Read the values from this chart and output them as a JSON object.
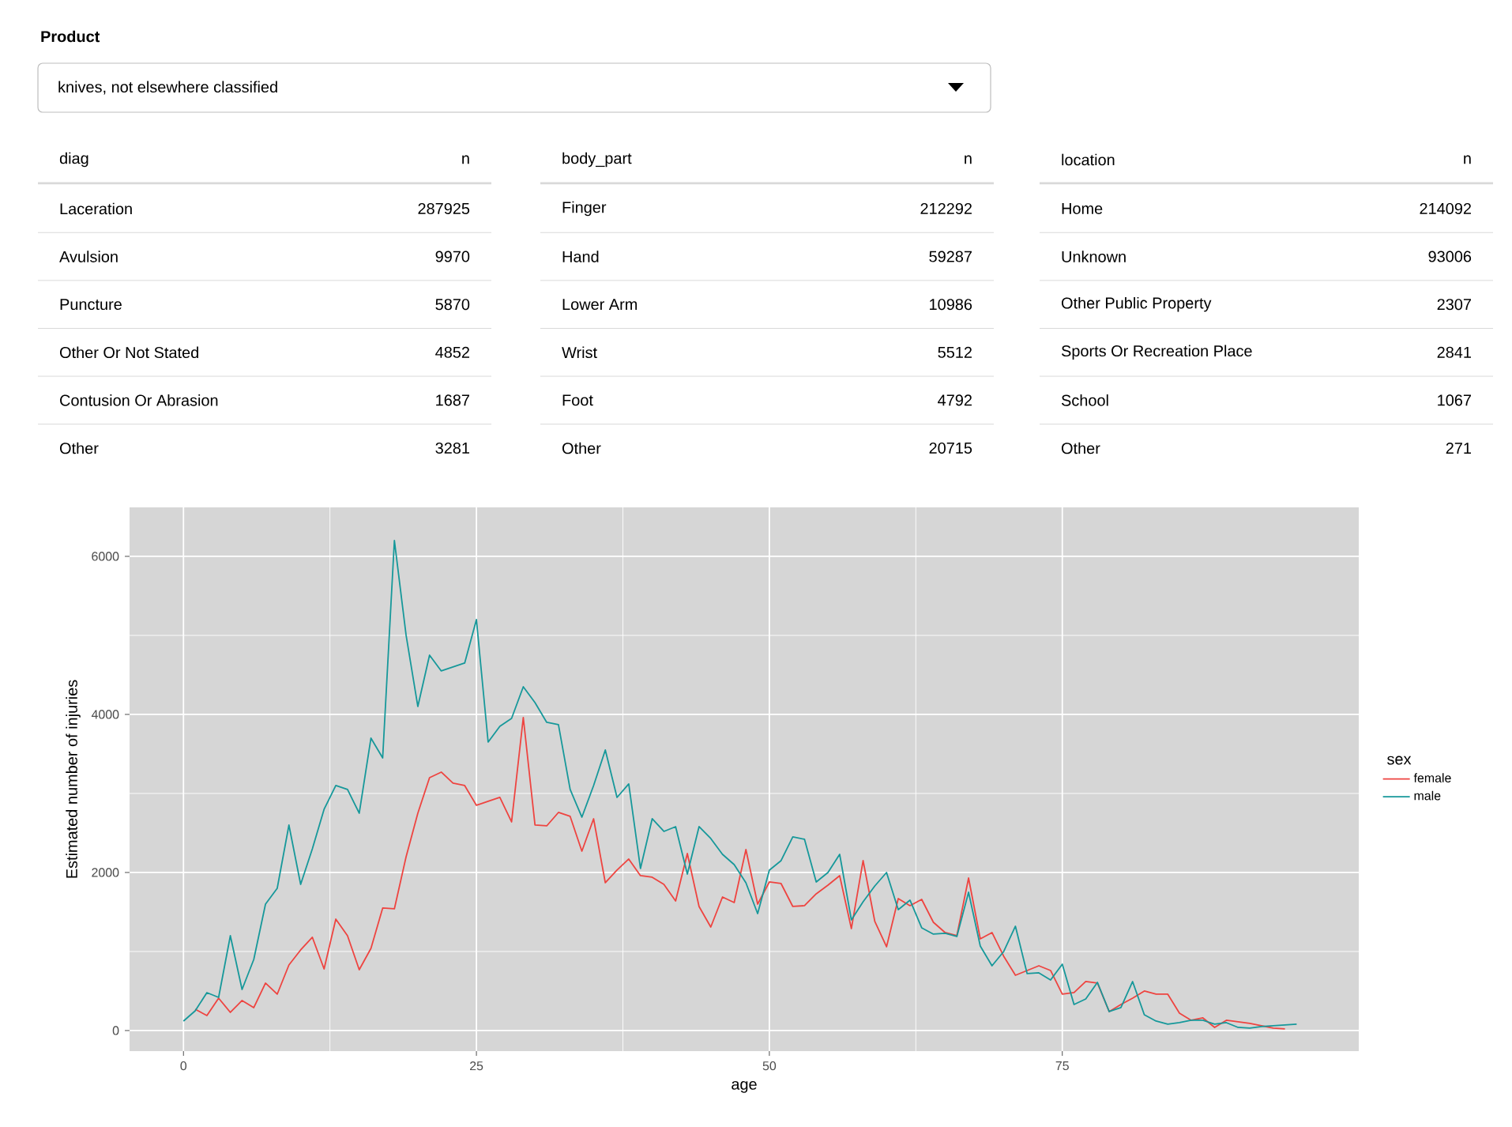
{
  "chart_data": [
    {
      "type": "other",
      "title": "Product",
      "annotations": [
        "knives, not elsewhere classified"
      ]
    },
    {
      "type": "other",
      "xlabel": "diag",
      "ylabel": "n",
      "data_labels": true,
      "categories": [
        "Laceration",
        "Avulsion",
        "Puncture",
        "Other Or Not Stated",
        "Contusion Or Abrasion",
        "Other"
      ],
      "values": [
        287925,
        9970,
        5870,
        4852,
        1687,
        3281
      ]
    },
    {
      "type": "other",
      "xlabel": "body_part",
      "ylabel": "n",
      "data_labels": true,
      "categories": [
        "Finger",
        "Hand",
        "Lower Arm",
        "Wrist",
        "Foot",
        "Other"
      ],
      "values": [
        212292,
        59287,
        10986,
        5512,
        4792,
        20715
      ]
    },
    {
      "type": "other",
      "xlabel": "location",
      "ylabel": "n",
      "data_labels": true,
      "categories": [
        "Home",
        "Unknown",
        "Other Public Property",
        "Sports Or Recreation Place",
        "School",
        "Other"
      ],
      "values": [
        214092,
        93006,
        2307,
        2841,
        1067,
        271
      ]
    },
    {
      "type": "line",
      "xlabel": "age",
      "ylabel": "Estimated number of injuries",
      "legend_title": "sex",
      "legend": "right",
      "grid": true,
      "xlim": [
        -4.6,
        100.3
      ],
      "ylim": [
        -260,
        6620
      ],
      "xticks": [
        0,
        25,
        50,
        75
      ],
      "yticks": [
        0,
        2000,
        4000,
        6000
      ],
      "x": [
        0,
        1,
        2,
        3,
        4,
        5,
        6,
        7,
        8,
        9,
        10,
        11,
        12,
        13,
        14,
        15,
        16,
        17,
        18,
        19,
        20,
        21,
        22,
        23,
        24,
        25,
        26,
        27,
        28,
        29,
        30,
        31,
        32,
        33,
        34,
        35,
        36,
        37,
        38,
        39,
        40,
        41,
        42,
        43,
        44,
        45,
        46,
        47,
        48,
        49,
        50,
        51,
        52,
        53,
        54,
        55,
        56,
        57,
        58,
        59,
        60,
        61,
        62,
        63,
        64,
        65,
        66,
        67,
        68,
        69,
        70,
        71,
        72,
        73,
        74,
        75,
        76,
        77,
        78,
        79,
        80,
        81,
        82,
        83,
        84,
        85,
        86,
        87,
        88,
        89,
        90,
        91,
        92,
        93,
        94,
        95
      ],
      "series": [
        {
          "name": "female",
          "color": "#ee4440",
          "values": [
            null,
            270,
            190,
            410,
            230,
            380,
            290,
            600,
            460,
            830,
            1020,
            1180,
            780,
            1410,
            1200,
            770,
            1040,
            1550,
            1540,
            2200,
            2750,
            3200,
            3270,
            3130,
            3100,
            2850,
            2900,
            2950,
            2640,
            3960,
            2600,
            2590,
            2760,
            2710,
            2270,
            2680,
            1870,
            2030,
            2170,
            1960,
            1940,
            1850,
            1640,
            2240,
            1570,
            1310,
            1690,
            1620,
            2290,
            1600,
            1880,
            1860,
            1570,
            1580,
            1730,
            1840,
            1960,
            1290,
            2150,
            1380,
            1060,
            1670,
            1580,
            1660,
            1370,
            1240,
            1200,
            1930,
            1160,
            1240,
            940,
            700,
            760,
            820,
            760,
            460,
            480,
            620,
            600,
            240,
            330,
            410,
            500,
            460,
            460,
            220,
            130,
            160,
            40,
            130,
            110,
            90,
            60,
            30,
            20,
            null
          ]
        },
        {
          "name": "male",
          "color": "#16989a",
          "values": [
            120,
            250,
            480,
            420,
            1200,
            520,
            900,
            1600,
            1800,
            2600,
            1850,
            2300,
            2800,
            3100,
            3050,
            2750,
            3700,
            3450,
            6200,
            5000,
            4100,
            4750,
            4550,
            4600,
            4650,
            5200,
            3650,
            3850,
            3950,
            4350,
            4150,
            3900,
            3870,
            3050,
            2700,
            3100,
            3550,
            2950,
            3120,
            2050,
            2680,
            2520,
            2580,
            1980,
            2580,
            2430,
            2230,
            2100,
            1870,
            1480,
            2030,
            2150,
            2450,
            2420,
            1880,
            2000,
            2230,
            1400,
            1630,
            1830,
            2000,
            1530,
            1650,
            1300,
            1220,
            1230,
            1190,
            1750,
            1070,
            820,
            1000,
            1320,
            720,
            730,
            640,
            840,
            330,
            400,
            610,
            240,
            290,
            620,
            200,
            120,
            80,
            100,
            130,
            130,
            80,
            100,
            40,
            30,
            50,
            60,
            70,
            80
          ]
        }
      ]
    }
  ]
}
